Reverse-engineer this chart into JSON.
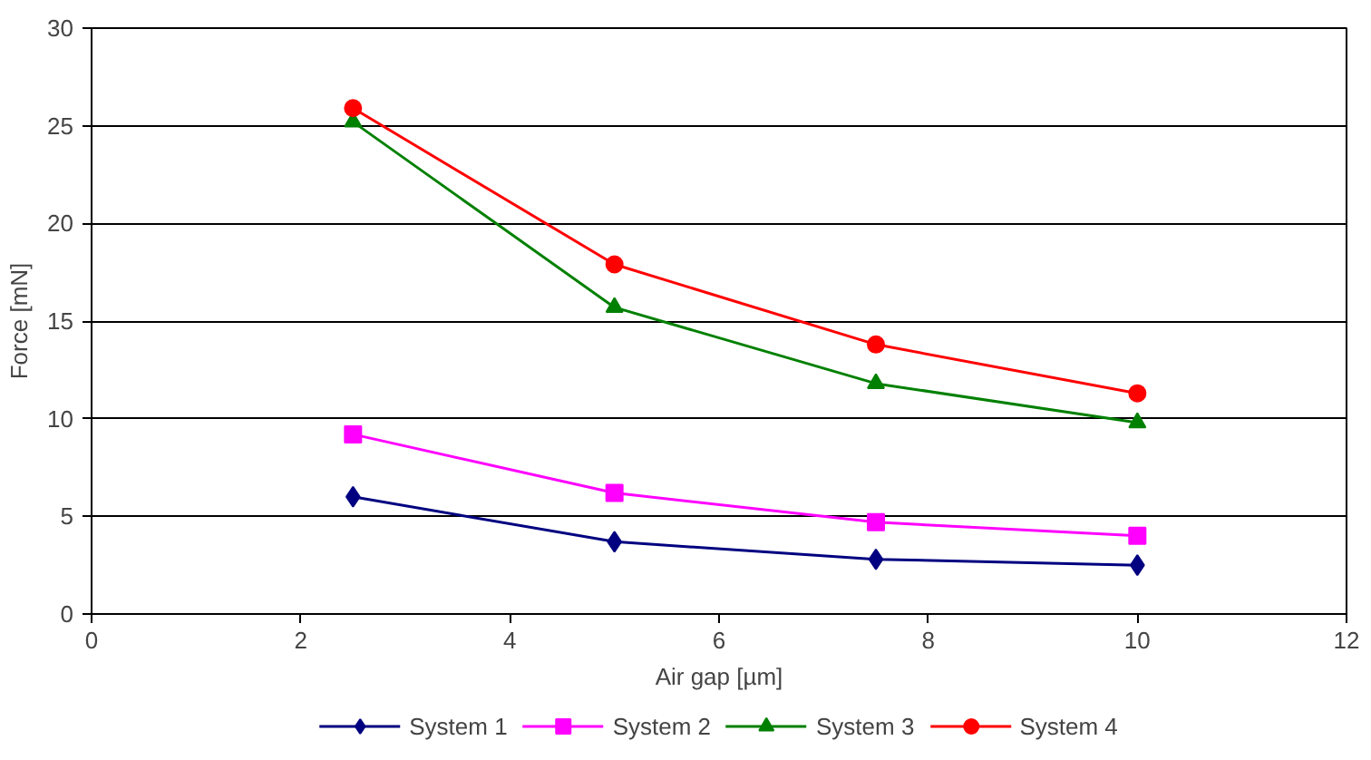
{
  "chart_data": {
    "type": "line",
    "xlabel": "Air gap [µm]",
    "ylabel": "Force [mN]",
    "x": [
      2.5,
      5,
      7.5,
      10
    ],
    "series": [
      {
        "name": "System 1",
        "color": "#000080",
        "marker": "diamond",
        "values": [
          6.0,
          3.7,
          2.8,
          2.5
        ]
      },
      {
        "name": "System 2",
        "color": "#ff00ff",
        "marker": "square",
        "values": [
          9.2,
          6.2,
          4.7,
          4.0
        ]
      },
      {
        "name": "System 3",
        "color": "#008000",
        "marker": "triangle",
        "values": [
          25.2,
          15.7,
          11.8,
          9.8
        ]
      },
      {
        "name": "System 4",
        "color": "#ff0000",
        "marker": "circle",
        "values": [
          25.9,
          17.9,
          13.8,
          11.3
        ]
      }
    ],
    "xlim": [
      0,
      12
    ],
    "xticks": [
      0,
      2,
      4,
      6,
      8,
      10,
      12
    ],
    "ylim": [
      0,
      30
    ],
    "yticks": [
      0,
      5,
      10,
      15,
      20,
      25,
      30
    ],
    "grid": "y",
    "legend": "bottom",
    "line_style": "solid"
  }
}
